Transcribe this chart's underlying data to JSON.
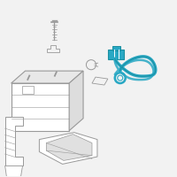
{
  "bg_color": "#f2f2f2",
  "line_color": "#999999",
  "cable_color": "#29a8c4",
  "figsize": [
    2.0,
    2.0
  ],
  "dpi": 100
}
